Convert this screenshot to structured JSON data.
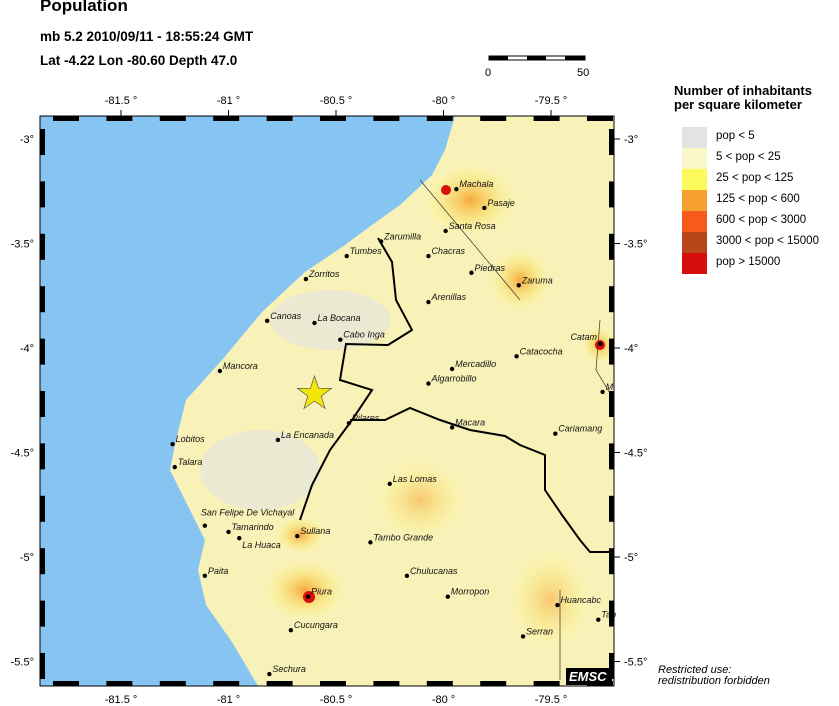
{
  "header": {
    "title": "Population",
    "event": "mb 5.2  2010/09/11 - 18:55:24 GMT",
    "location": "Lat -4.22    Lon -80.60     Depth  47.0"
  },
  "scale_bar": {
    "start": "0",
    "end": "50"
  },
  "axes": {
    "lon_ticks": [
      "-81.5 °",
      "-81 °",
      "-80.5 °",
      "-80 °",
      "-79.5 °"
    ],
    "lon_values": [
      -81.5,
      -81,
      -80.5,
      -80,
      -79.5
    ],
    "lat_ticks": [
      "-3°",
      "-3.5°",
      "-4°",
      "-4.5°",
      "-5°",
      "-5.5°"
    ],
    "lat_values": [
      -3,
      -3.5,
      -4,
      -4.5,
      -5,
      -5.5
    ]
  },
  "epicenter": {
    "lat": -4.22,
    "lon": -80.6,
    "color": "#f5e60a"
  },
  "cities": [
    {
      "name": "Machala",
      "lon": -79.94,
      "lat": -3.24
    },
    {
      "name": "Pasaje",
      "lon": -79.81,
      "lat": -3.33
    },
    {
      "name": "Santa Rosa",
      "lon": -79.99,
      "lat": -3.44
    },
    {
      "name": "Zarumilla",
      "lon": -80.29,
      "lat": -3.49
    },
    {
      "name": "Tumbes",
      "lon": -80.45,
      "lat": -3.56
    },
    {
      "name": "Chacras",
      "lon": -80.07,
      "lat": -3.56
    },
    {
      "name": "Piedras",
      "lon": -79.87,
      "lat": -3.64
    },
    {
      "name": "Zaruma",
      "lon": -79.65,
      "lat": -3.7
    },
    {
      "name": "Zorritos",
      "lon": -80.64,
      "lat": -3.67
    },
    {
      "name": "Arenillas",
      "lon": -80.07,
      "lat": -3.78
    },
    {
      "name": "Canoas",
      "lon": -80.82,
      "lat": -3.87
    },
    {
      "name": "La Bocana",
      "lon": -80.6,
      "lat": -3.88
    },
    {
      "name": "Cabo Inga",
      "lon": -80.48,
      "lat": -3.96
    },
    {
      "name": "Catam",
      "lon": -79.27,
      "lat": -3.98
    },
    {
      "name": "Catacocha",
      "lon": -79.66,
      "lat": -4.04
    },
    {
      "name": "Mancora",
      "lon": -81.04,
      "lat": -4.11
    },
    {
      "name": "Mercadillo",
      "lon": -79.96,
      "lat": -4.1
    },
    {
      "name": "Algarrobillo",
      "lon": -80.07,
      "lat": -4.17
    },
    {
      "name": "M",
      "lon": -79.26,
      "lat": -4.21
    },
    {
      "name": "Pilares",
      "lon": -80.44,
      "lat": -4.36
    },
    {
      "name": "Macara",
      "lon": -79.96,
      "lat": -4.38
    },
    {
      "name": "La Encanada",
      "lon": -80.77,
      "lat": -4.44
    },
    {
      "name": "Lobitos",
      "lon": -81.26,
      "lat": -4.46
    },
    {
      "name": "Cariamang",
      "lon": -79.48,
      "lat": -4.41
    },
    {
      "name": "Talara",
      "lon": -81.25,
      "lat": -4.57
    },
    {
      "name": "Las Lomas",
      "lon": -80.25,
      "lat": -4.65
    },
    {
      "name": "San Felipe De Vichayal",
      "lon": -81.11,
      "lat": -4.85
    },
    {
      "name": "Tamarindo",
      "lon": -81.0,
      "lat": -4.88
    },
    {
      "name": "La Huaca",
      "lon": -80.95,
      "lat": -4.91
    },
    {
      "name": "Sullana",
      "lon": -80.68,
      "lat": -4.9
    },
    {
      "name": "Tambo Grande",
      "lon": -80.34,
      "lat": -4.93
    },
    {
      "name": "Chulucanas",
      "lon": -80.17,
      "lat": -5.09
    },
    {
      "name": "Paita",
      "lon": -81.11,
      "lat": -5.09
    },
    {
      "name": "Piura",
      "lon": -80.63,
      "lat": -5.19
    },
    {
      "name": "Morropon",
      "lon": -79.98,
      "lat": -5.19
    },
    {
      "name": "Huancabc",
      "lon": -79.47,
      "lat": -5.23
    },
    {
      "name": "Tab",
      "lon": -79.28,
      "lat": -5.3
    },
    {
      "name": "Cucungara",
      "lon": -80.71,
      "lat": -5.35
    },
    {
      "name": "Serran",
      "lon": -79.63,
      "lat": -5.38
    },
    {
      "name": "Sechura",
      "lon": -80.81,
      "lat": -5.56
    }
  ],
  "legend": {
    "title_line1": "Number of inhabitants",
    "title_line2": "per square kilometer",
    "items": [
      {
        "label": "pop < 5",
        "color": "#e3e3e3"
      },
      {
        "label": "5 < pop < 25",
        "color": "#f8f8c8"
      },
      {
        "label": "25 < pop < 125",
        "color": "#fafa5a"
      },
      {
        "label": "125 < pop < 600",
        "color": "#f6a030"
      },
      {
        "label": "600 < pop < 3000",
        "color": "#f85a1a"
      },
      {
        "label": "3000 < pop < 15000",
        "color": "#b8461a"
      },
      {
        "label": "pop > 15000",
        "color": "#d80e0e"
      }
    ]
  },
  "logo": "EMSC",
  "notice": {
    "line1": "Restricted use:",
    "line2": "redistribution forbidden"
  },
  "colors": {
    "sea": "#86c4f2",
    "land": "#f9f2b8"
  }
}
